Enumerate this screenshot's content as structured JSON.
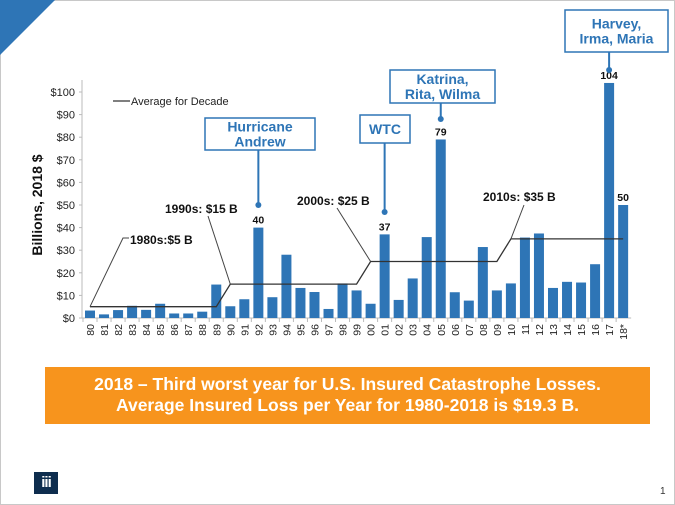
{
  "slide": {
    "banner_line1": "2018 – Third worst year for U.S. Insured Catastrophe Losses.",
    "banner_line2": "Average Insured Loss per Year for 1980-2018 is $19.3 B.",
    "logo_text": "iii",
    "page_number": "1",
    "accent_color": "#2e75b6",
    "banner_color": "#f7941d"
  },
  "chart_data": {
    "type": "bar",
    "title": "",
    "ylabel": "Billions, 2018 $",
    "xlabel": "",
    "ylim": [
      0,
      100
    ],
    "yticks": [
      "$0",
      "$10",
      "$20",
      "$30",
      "$40",
      "$50",
      "$60",
      "$70",
      "$80",
      "$90",
      "$100"
    ],
    "categories": [
      "80",
      "81",
      "82",
      "83",
      "84",
      "85",
      "86",
      "87",
      "88",
      "89",
      "90",
      "91",
      "92",
      "93",
      "94",
      "95",
      "96",
      "97",
      "98",
      "99",
      "00",
      "01",
      "02",
      "03",
      "04",
      "05",
      "06",
      "07",
      "08",
      "09",
      "10",
      "11",
      "12",
      "13",
      "14",
      "15",
      "16",
      "17",
      "18*"
    ],
    "values": [
      3.3,
      1.6,
      3.5,
      5.4,
      3.6,
      6.3,
      2.0,
      2.0,
      2.8,
      14.8,
      5.2,
      8.3,
      40,
      9.2,
      28,
      13.3,
      11.5,
      4.0,
      15.3,
      12.2,
      6.3,
      37,
      8.0,
      17.5,
      35.8,
      79,
      11.4,
      7.7,
      31.4,
      12.2,
      15.3,
      35.6,
      37.4,
      13.3,
      16.0,
      15.7,
      23.8,
      104,
      50
    ],
    "data_labels": [
      {
        "category": "92",
        "text": "40"
      },
      {
        "category": "01",
        "text": "37"
      },
      {
        "category": "05",
        "text": "79"
      },
      {
        "category": "17",
        "text": "104"
      },
      {
        "category": "18*",
        "text": "50"
      }
    ],
    "series_line": {
      "name": "Average for Decade",
      "decades": [
        {
          "label": "1980s:$5 B",
          "value": 5,
          "start": "80",
          "end": "89"
        },
        {
          "label": "1990s: $15 B",
          "value": 15,
          "start": "90",
          "end": "99"
        },
        {
          "label": "2000s: $25 B",
          "value": 25,
          "start": "00",
          "end": "09"
        },
        {
          "label": "2010s: $35 B",
          "value": 35,
          "start": "10",
          "end": "18*"
        }
      ]
    },
    "legend": {
      "position": "top-left",
      "entry": "Average for Decade"
    },
    "annotations": [
      {
        "category": "92",
        "lines": [
          "Hurricane",
          "Andrew"
        ]
      },
      {
        "category": "01",
        "lines": [
          "WTC"
        ]
      },
      {
        "category": "05",
        "lines": [
          "Katrina,",
          "Rita, Wilma"
        ]
      },
      {
        "category": "17",
        "lines": [
          "Harvey,",
          "Irma, Maria"
        ]
      }
    ]
  }
}
